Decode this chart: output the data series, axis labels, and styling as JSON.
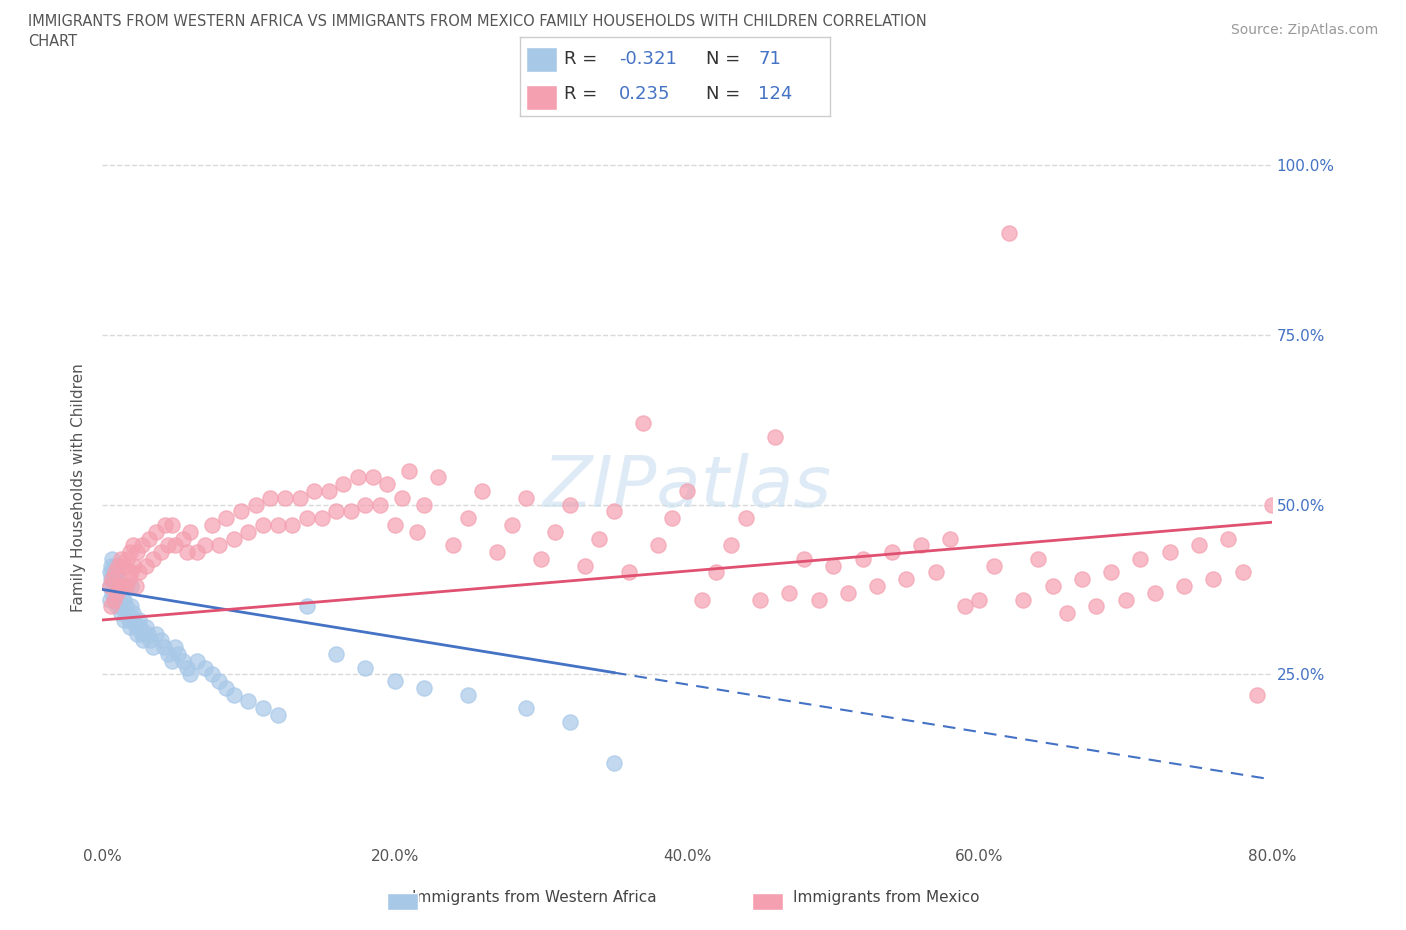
{
  "title": "IMMIGRANTS FROM WESTERN AFRICA VS IMMIGRANTS FROM MEXICO FAMILY HOUSEHOLDS WITH CHILDREN CORRELATION\nCHART",
  "source": "Source: ZipAtlas.com",
  "ylabel": "Family Households with Children",
  "legend_labels": [
    "Immigrants from Western Africa",
    "Immigrants from Mexico"
  ],
  "legend_R": [
    -0.321,
    0.235
  ],
  "legend_N": [
    71,
    124
  ],
  "blue_scatter_color": "#a8c8e8",
  "pink_scatter_color": "#f4a0b0",
  "blue_line_color": "#4472C4",
  "pink_line_color": "#E05070",
  "xlim": [
    0.0,
    0.8
  ],
  "ylim": [
    0.0,
    1.05
  ],
  "xtick_vals": [
    0.0,
    0.2,
    0.4,
    0.6,
    0.8
  ],
  "xtick_labels": [
    "0.0%",
    "20.0%",
    "40.0%",
    "60.0%",
    "80.0%"
  ],
  "ytick_vals": [
    0.25,
    0.5,
    0.75,
    1.0
  ],
  "ytick_labels": [
    "25.0%",
    "50.0%",
    "75.0%",
    "100.0%"
  ],
  "blue_x": [
    0.005,
    0.005,
    0.005,
    0.006,
    0.006,
    0.007,
    0.007,
    0.007,
    0.008,
    0.008,
    0.009,
    0.009,
    0.01,
    0.01,
    0.01,
    0.011,
    0.011,
    0.012,
    0.012,
    0.013,
    0.013,
    0.014,
    0.015,
    0.015,
    0.016,
    0.016,
    0.017,
    0.018,
    0.019,
    0.02,
    0.02,
    0.021,
    0.022,
    0.023,
    0.024,
    0.025,
    0.026,
    0.027,
    0.028,
    0.03,
    0.031,
    0.033,
    0.035,
    0.037,
    0.04,
    0.042,
    0.045,
    0.048,
    0.05,
    0.052,
    0.055,
    0.058,
    0.06,
    0.065,
    0.07,
    0.075,
    0.08,
    0.085,
    0.09,
    0.1,
    0.11,
    0.12,
    0.14,
    0.16,
    0.18,
    0.2,
    0.22,
    0.25,
    0.29,
    0.32,
    0.35
  ],
  "blue_y": [
    0.38,
    0.4,
    0.36,
    0.39,
    0.41,
    0.37,
    0.4,
    0.42,
    0.36,
    0.39,
    0.38,
    0.41,
    0.35,
    0.37,
    0.4,
    0.36,
    0.39,
    0.35,
    0.38,
    0.34,
    0.37,
    0.36,
    0.33,
    0.36,
    0.35,
    0.38,
    0.34,
    0.33,
    0.32,
    0.35,
    0.38,
    0.34,
    0.33,
    0.32,
    0.31,
    0.33,
    0.32,
    0.31,
    0.3,
    0.32,
    0.31,
    0.3,
    0.29,
    0.31,
    0.3,
    0.29,
    0.28,
    0.27,
    0.29,
    0.28,
    0.27,
    0.26,
    0.25,
    0.27,
    0.26,
    0.25,
    0.24,
    0.23,
    0.22,
    0.21,
    0.2,
    0.19,
    0.35,
    0.28,
    0.26,
    0.24,
    0.23,
    0.22,
    0.2,
    0.18,
    0.12
  ],
  "pink_x": [
    0.005,
    0.006,
    0.007,
    0.008,
    0.009,
    0.01,
    0.011,
    0.012,
    0.013,
    0.014,
    0.015,
    0.016,
    0.017,
    0.018,
    0.019,
    0.02,
    0.021,
    0.022,
    0.023,
    0.024,
    0.025,
    0.027,
    0.03,
    0.032,
    0.035,
    0.037,
    0.04,
    0.043,
    0.045,
    0.048,
    0.05,
    0.055,
    0.058,
    0.06,
    0.065,
    0.07,
    0.075,
    0.08,
    0.085,
    0.09,
    0.095,
    0.1,
    0.105,
    0.11,
    0.115,
    0.12,
    0.125,
    0.13,
    0.135,
    0.14,
    0.145,
    0.15,
    0.155,
    0.16,
    0.165,
    0.17,
    0.175,
    0.18,
    0.185,
    0.19,
    0.195,
    0.2,
    0.205,
    0.21,
    0.215,
    0.22,
    0.23,
    0.24,
    0.25,
    0.26,
    0.27,
    0.28,
    0.29,
    0.3,
    0.31,
    0.32,
    0.33,
    0.34,
    0.35,
    0.36,
    0.37,
    0.38,
    0.39,
    0.4,
    0.41,
    0.42,
    0.43,
    0.44,
    0.45,
    0.46,
    0.47,
    0.48,
    0.49,
    0.5,
    0.51,
    0.52,
    0.53,
    0.54,
    0.55,
    0.56,
    0.57,
    0.58,
    0.59,
    0.6,
    0.61,
    0.62,
    0.63,
    0.64,
    0.65,
    0.66,
    0.67,
    0.68,
    0.69,
    0.7,
    0.71,
    0.72,
    0.73,
    0.74,
    0.75,
    0.76,
    0.77,
    0.78,
    0.79,
    0.8
  ],
  "pink_y": [
    0.38,
    0.35,
    0.39,
    0.36,
    0.4,
    0.37,
    0.41,
    0.38,
    0.42,
    0.38,
    0.41,
    0.38,
    0.42,
    0.39,
    0.43,
    0.4,
    0.44,
    0.41,
    0.38,
    0.43,
    0.4,
    0.44,
    0.41,
    0.45,
    0.42,
    0.46,
    0.43,
    0.47,
    0.44,
    0.47,
    0.44,
    0.45,
    0.43,
    0.46,
    0.43,
    0.44,
    0.47,
    0.44,
    0.48,
    0.45,
    0.49,
    0.46,
    0.5,
    0.47,
    0.51,
    0.47,
    0.51,
    0.47,
    0.51,
    0.48,
    0.52,
    0.48,
    0.52,
    0.49,
    0.53,
    0.49,
    0.54,
    0.5,
    0.54,
    0.5,
    0.53,
    0.47,
    0.51,
    0.55,
    0.46,
    0.5,
    0.54,
    0.44,
    0.48,
    0.52,
    0.43,
    0.47,
    0.51,
    0.42,
    0.46,
    0.5,
    0.41,
    0.45,
    0.49,
    0.4,
    0.62,
    0.44,
    0.48,
    0.52,
    0.36,
    0.4,
    0.44,
    0.48,
    0.36,
    0.6,
    0.37,
    0.42,
    0.36,
    0.41,
    0.37,
    0.42,
    0.38,
    0.43,
    0.39,
    0.44,
    0.4,
    0.45,
    0.35,
    0.36,
    0.41,
    0.9,
    0.36,
    0.42,
    0.38,
    0.34,
    0.39,
    0.35,
    0.4,
    0.36,
    0.42,
    0.37,
    0.43,
    0.38,
    0.44,
    0.39,
    0.45,
    0.4,
    0.22,
    0.5
  ],
  "background_color": "#ffffff",
  "watermark_text": "ZIPatlas",
  "watermark_color": "#c8dff0",
  "title_color": "#555555",
  "source_color": "#999999",
  "axis_color": "#555555",
  "ytick_color": "#4472C4",
  "grid_color": "#d0d0d0"
}
